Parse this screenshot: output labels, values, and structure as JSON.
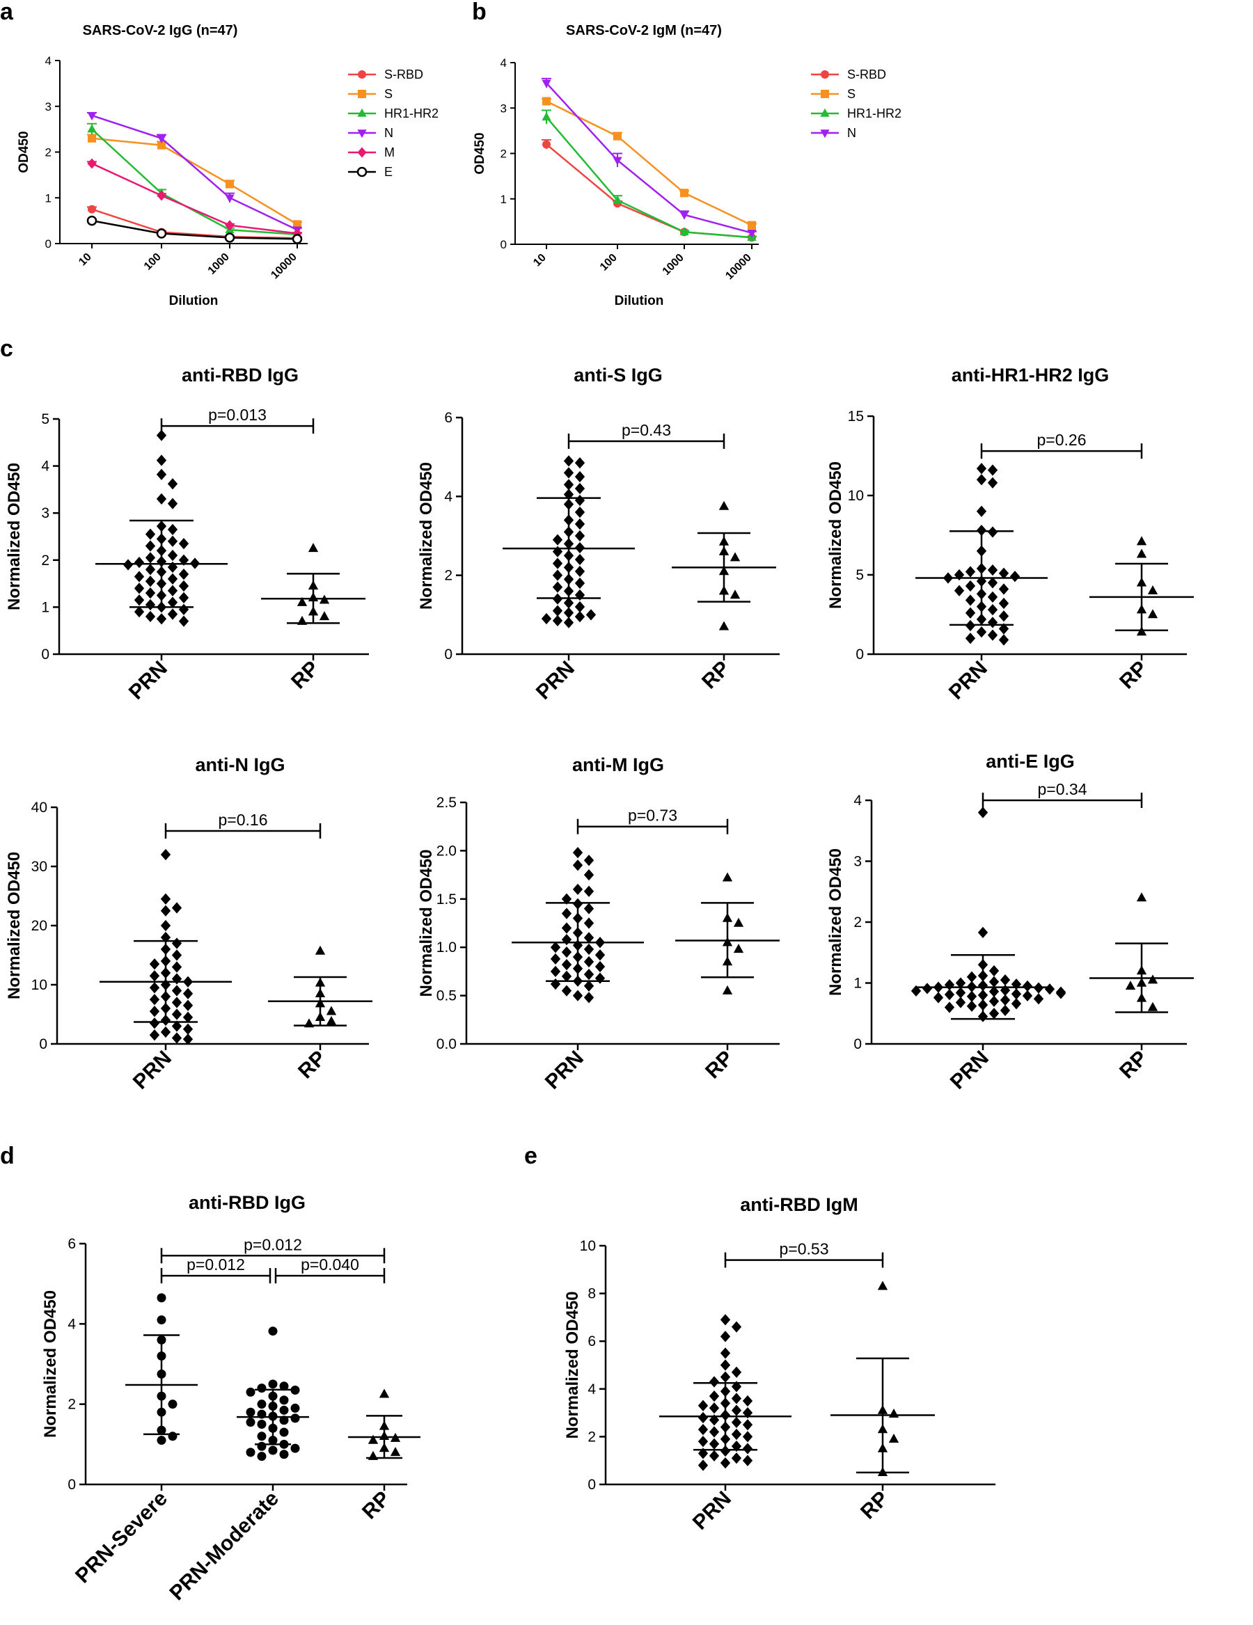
{
  "chart_data": [
    {
      "id": "a",
      "letter": "a",
      "type": "line",
      "title": "SARS-CoV-2 IgG (n=47)",
      "xlabel": "Dilution",
      "ylabel": "OD450",
      "categories": [
        "10",
        "100",
        "1000",
        "10000"
      ],
      "ylim": [
        0,
        4
      ],
      "yticks": [
        0,
        1,
        2,
        3,
        4
      ],
      "series": [
        {
          "name": "S-RBD",
          "color": "#ef4444",
          "marker": "circle",
          "values": [
            0.75,
            0.25,
            0.15,
            0.12
          ],
          "err": [
            0.05,
            0.03,
            0.02,
            0.02
          ]
        },
        {
          "name": "S",
          "color": "#f7901e",
          "marker": "square",
          "values": [
            2.3,
            2.15,
            1.3,
            0.42
          ],
          "err": [
            0.08,
            0.08,
            0.08,
            0.05
          ]
        },
        {
          "name": "HR1-HR2",
          "color": "#22bb33",
          "marker": "triangle",
          "values": [
            2.5,
            1.1,
            0.3,
            0.2
          ],
          "err": [
            0.12,
            0.08,
            0.04,
            0.03
          ]
        },
        {
          "name": "N",
          "color": "#a020f0",
          "marker": "triangle-down",
          "values": [
            2.8,
            2.3,
            1.0,
            0.3
          ],
          "err": [
            0.06,
            0.08,
            0.1,
            0.04
          ]
        },
        {
          "name": "M",
          "color": "#e8196e",
          "marker": "diamond",
          "values": [
            1.75,
            1.05,
            0.4,
            0.22
          ],
          "err": [
            0.04,
            0.04,
            0.03,
            0.02
          ]
        },
        {
          "name": "E",
          "color": "#000000",
          "marker": "open-circle",
          "values": [
            0.5,
            0.22,
            0.13,
            0.1
          ],
          "err": [
            0.03,
            0.02,
            0.02,
            0.02
          ]
        }
      ]
    },
    {
      "id": "b",
      "letter": "b",
      "type": "line",
      "title": "SARS-CoV-2 IgM (n=47)",
      "xlabel": "Dilution",
      "ylabel": "OD450",
      "categories": [
        "10",
        "100",
        "1000",
        "10000"
      ],
      "ylim": [
        0,
        4
      ],
      "yticks": [
        0,
        1,
        2,
        3,
        4
      ],
      "series": [
        {
          "name": "S-RBD",
          "color": "#ef4444",
          "marker": "circle",
          "values": [
            2.2,
            0.9,
            0.27,
            0.15
          ],
          "err": [
            0.1,
            0.05,
            0.03,
            0.02
          ]
        },
        {
          "name": "S",
          "color": "#f7901e",
          "marker": "square",
          "values": [
            3.15,
            2.38,
            1.13,
            0.42
          ],
          "err": [
            0.05,
            0.08,
            0.05,
            0.03
          ]
        },
        {
          "name": "HR1-HR2",
          "color": "#22bb33",
          "marker": "triangle",
          "values": [
            2.8,
            0.97,
            0.27,
            0.15
          ],
          "err": [
            0.15,
            0.1,
            0.03,
            0.02
          ]
        },
        {
          "name": "N",
          "color": "#a020f0",
          "marker": "triangle-down",
          "values": [
            3.55,
            1.85,
            0.65,
            0.25
          ],
          "err": [
            0.1,
            0.15,
            0.08,
            0.03
          ]
        }
      ]
    },
    {
      "id": "c1",
      "letter": "c",
      "type": "scatter",
      "title": "anti-RBD IgG",
      "ylabel": "Normalized OD450",
      "categories": [
        "PRN",
        "RP"
      ],
      "ylim": [
        0,
        5
      ],
      "yticks": [
        "0",
        "1",
        "2",
        "3",
        "4",
        "5"
      ],
      "groups": [
        {
          "name": "PRN",
          "marker": "diamond",
          "mean": 1.92,
          "sd_low": 1.0,
          "sd_high": 2.84,
          "values": [
            4.65,
            4.12,
            3.82,
            3.62,
            3.3,
            3.2,
            2.72,
            2.65,
            2.55,
            2.45,
            2.4,
            2.35,
            2.3,
            2.2,
            2.1,
            2.05,
            2.0,
            1.97,
            1.95,
            1.93,
            1.9,
            1.85,
            1.8,
            1.75,
            1.7,
            1.65,
            1.6,
            1.55,
            1.5,
            1.45,
            1.4,
            1.35,
            1.3,
            1.25,
            1.2,
            1.15,
            1.1,
            1.05,
            1.0,
            0.95,
            0.9,
            0.85,
            0.8,
            0.75,
            0.7
          ]
        },
        {
          "name": "RP",
          "marker": "triangle",
          "mean": 1.18,
          "sd_low": 0.66,
          "sd_high": 1.71,
          "values": [
            2.25,
            1.45,
            1.2,
            1.15,
            1.1,
            0.9,
            0.8,
            0.7
          ]
        }
      ],
      "comparisons": [
        {
          "label": "p=0.013",
          "from": 0,
          "to": 1,
          "y": 4.85
        }
      ]
    },
    {
      "id": "c2",
      "letter": "",
      "type": "scatter",
      "title": "anti-S IgG",
      "ylabel": "Normalized OD450",
      "categories": [
        "PRN",
        "RP"
      ],
      "ylim": [
        0,
        6
      ],
      "yticks": [
        "0",
        "2",
        "4",
        "6"
      ],
      "groups": [
        {
          "name": "PRN",
          "marker": "diamond",
          "mean": 2.68,
          "sd_low": 1.42,
          "sd_high": 3.96,
          "values": [
            4.9,
            4.85,
            4.6,
            4.5,
            4.3,
            4.2,
            4.05,
            3.9,
            3.8,
            3.6,
            3.4,
            3.3,
            3.1,
            3.0,
            2.9,
            2.8,
            2.7,
            2.6,
            2.5,
            2.4,
            2.3,
            2.2,
            2.1,
            2.0,
            1.9,
            1.8,
            1.7,
            1.6,
            1.5,
            1.4,
            1.3,
            1.2,
            1.1,
            1.05,
            1.0,
            0.95,
            0.9,
            0.85,
            0.8
          ]
        },
        {
          "name": "RP",
          "marker": "triangle",
          "mean": 2.2,
          "sd_low": 1.33,
          "sd_high": 3.07,
          "values": [
            3.75,
            2.85,
            2.6,
            2.45,
            2.1,
            1.6,
            1.5,
            0.7
          ]
        }
      ],
      "comparisons": [
        {
          "label": "p=0.43",
          "from": 0,
          "to": 1,
          "y": 5.4
        }
      ]
    },
    {
      "id": "c3",
      "letter": "",
      "type": "scatter",
      "title": "anti-HR1-HR2 IgG",
      "ylabel": "Normalized OD450",
      "categories": [
        "PRN",
        "RP"
      ],
      "ylim": [
        0,
        15
      ],
      "yticks": [
        "0",
        "5",
        "10",
        "15"
      ],
      "groups": [
        {
          "name": "PRN",
          "marker": "diamond",
          "mean": 4.8,
          "sd_low": 1.85,
          "sd_high": 7.75,
          "values": [
            11.7,
            11.6,
            11.0,
            10.8,
            9.0,
            7.8,
            7.7,
            6.5,
            5.4,
            5.3,
            5.2,
            5.1,
            5.0,
            4.9,
            4.8,
            4.6,
            4.5,
            4.3,
            4.1,
            4.0,
            3.8,
            3.6,
            3.4,
            3.2,
            3.0,
            2.8,
            2.6,
            2.4,
            2.2,
            2.0,
            1.8,
            1.6,
            1.4,
            1.2,
            1.0,
            0.9
          ]
        },
        {
          "name": "RP",
          "marker": "triangle",
          "mean": 3.6,
          "sd_low": 1.5,
          "sd_high": 5.7,
          "values": [
            7.1,
            6.3,
            4.5,
            4.0,
            2.8,
            2.5,
            1.4
          ]
        }
      ],
      "comparisons": [
        {
          "label": "p=0.26",
          "from": 0,
          "to": 1,
          "y": 12.8
        }
      ]
    },
    {
      "id": "c4",
      "letter": "",
      "type": "scatter",
      "title": "anti-N IgG",
      "ylabel": "Normalized OD450",
      "categories": [
        "PRN",
        "RP"
      ],
      "ylim": [
        0,
        40
      ],
      "yticks": [
        "0",
        "10",
        "20",
        "30",
        "40"
      ],
      "groups": [
        {
          "name": "PRN",
          "marker": "diamond",
          "mean": 10.5,
          "sd_low": 3.7,
          "sd_high": 17.4,
          "values": [
            32,
            24.5,
            23,
            22.5,
            20,
            18,
            17,
            16,
            15,
            14,
            13.5,
            13,
            12,
            11.5,
            11,
            10.5,
            10,
            9.5,
            9,
            8.5,
            8,
            7.5,
            7,
            6.5,
            6,
            5.5,
            5,
            4.5,
            4,
            3.5,
            3,
            2.5,
            2,
            1.5,
            1,
            0.8
          ]
        },
        {
          "name": "RP",
          "marker": "triangle",
          "mean": 7.2,
          "sd_low": 3.1,
          "sd_high": 11.3,
          "values": [
            15.7,
            10.3,
            8.5,
            6.8,
            5.5,
            4.5,
            3.8,
            3.4
          ]
        }
      ],
      "comparisons": [
        {
          "label": "p=0.16",
          "from": 0,
          "to": 1,
          "y": 36
        }
      ]
    },
    {
      "id": "c5",
      "letter": "",
      "type": "scatter",
      "title": "anti-M IgG",
      "ylabel": "Normalized OD450",
      "categories": [
        "PRN",
        "RP"
      ],
      "ylim": [
        0,
        2.5
      ],
      "yticks": [
        "0.0",
        "0.5",
        "1.0",
        "1.5",
        "2.0",
        "2.5"
      ],
      "groups": [
        {
          "name": "PRN",
          "marker": "diamond",
          "mean": 1.05,
          "sd_low": 0.65,
          "sd_high": 1.46,
          "values": [
            1.98,
            1.9,
            1.85,
            1.75,
            1.6,
            1.58,
            1.5,
            1.45,
            1.4,
            1.35,
            1.3,
            1.25,
            1.2,
            1.15,
            1.1,
            1.08,
            1.05,
            1.02,
            1.0,
            0.98,
            0.95,
            0.92,
            0.9,
            0.88,
            0.85,
            0.82,
            0.8,
            0.78,
            0.75,
            0.72,
            0.7,
            0.68,
            0.65,
            0.62,
            0.6,
            0.55,
            0.5,
            0.48
          ]
        },
        {
          "name": "RP",
          "marker": "triangle",
          "mean": 1.07,
          "sd_low": 0.69,
          "sd_high": 1.46,
          "values": [
            1.72,
            1.3,
            1.25,
            1.05,
            0.98,
            0.85,
            0.55
          ]
        }
      ],
      "comparisons": [
        {
          "label": "p=0.73",
          "from": 0,
          "to": 1,
          "y": 2.25
        }
      ]
    },
    {
      "id": "c6",
      "letter": "",
      "type": "scatter",
      "title": "anti-E IgG",
      "ylabel": "Normalized OD450",
      "categories": [
        "PRN",
        "RP"
      ],
      "ylim": [
        0,
        4
      ],
      "yticks": [
        "0",
        "1",
        "2",
        "3",
        "4"
      ],
      "groups": [
        {
          "name": "PRN",
          "marker": "diamond",
          "mean": 0.93,
          "sd_low": 0.41,
          "sd_high": 1.46,
          "values": [
            3.8,
            1.83,
            1.3,
            1.2,
            1.12,
            1.1,
            1.05,
            1.02,
            1.0,
            0.98,
            0.97,
            0.96,
            0.95,
            0.94,
            0.93,
            0.92,
            0.91,
            0.9,
            0.88,
            0.87,
            0.86,
            0.85,
            0.84,
            0.83,
            0.82,
            0.81,
            0.8,
            0.79,
            0.78,
            0.76,
            0.74,
            0.72,
            0.7,
            0.68,
            0.66,
            0.64,
            0.62,
            0.6,
            0.55,
            0.5,
            0.45
          ]
        },
        {
          "name": "RP",
          "marker": "triangle",
          "mean": 1.08,
          "sd_low": 0.52,
          "sd_high": 1.65,
          "values": [
            2.4,
            1.2,
            1.05,
            1.0,
            0.95,
            0.75,
            0.6
          ]
        }
      ],
      "comparisons": [
        {
          "label": "p=0.34",
          "from": 0,
          "to": 1,
          "y": 4.0
        }
      ]
    },
    {
      "id": "d",
      "letter": "d",
      "type": "scatter",
      "title": "anti-RBD IgG",
      "ylabel": "Normalized OD450",
      "categories": [
        "PRN-Severe",
        "PRN-Moderate",
        "RP"
      ],
      "ylim": [
        0,
        6
      ],
      "yticks": [
        "0",
        "2",
        "4",
        "6"
      ],
      "groups": [
        {
          "name": "PRN-Severe",
          "marker": "circle",
          "mean": 2.48,
          "sd_low": 1.25,
          "sd_high": 3.72,
          "values": [
            4.65,
            4.1,
            3.6,
            3.2,
            2.75,
            2.2,
            2.0,
            1.8,
            1.35,
            1.2,
            1.1
          ]
        },
        {
          "name": "PRN-Moderate",
          "marker": "circle",
          "mean": 1.68,
          "sd_low": 1.0,
          "sd_high": 2.36,
          "values": [
            3.82,
            2.5,
            2.45,
            2.4,
            2.35,
            2.3,
            2.2,
            2.1,
            2.0,
            1.95,
            1.9,
            1.85,
            1.8,
            1.75,
            1.7,
            1.65,
            1.6,
            1.55,
            1.5,
            1.4,
            1.3,
            1.2,
            1.1,
            1.0,
            0.95,
            0.9,
            0.85,
            0.8,
            0.75,
            0.7
          ]
        },
        {
          "name": "RP",
          "marker": "triangle",
          "mean": 1.18,
          "sd_low": 0.66,
          "sd_high": 1.71,
          "values": [
            2.25,
            1.45,
            1.2,
            1.15,
            1.1,
            0.9,
            0.8,
            0.7
          ]
        }
      ],
      "comparisons": [
        {
          "label": "p=0.012",
          "from": 0,
          "to": 2,
          "y": 5.7
        },
        {
          "label": "p=0.012",
          "from": 0,
          "to": 1,
          "y": 5.2
        },
        {
          "label": "p=0.040",
          "from": 1,
          "to": 2,
          "y": 5.2
        }
      ]
    },
    {
      "id": "e",
      "letter": "e",
      "type": "scatter",
      "title": "anti-RBD IgM",
      "ylabel": "Normalized OD450",
      "categories": [
        "PRN",
        "RP"
      ],
      "ylim": [
        0,
        10
      ],
      "yticks": [
        "0",
        "2",
        "4",
        "6",
        "8",
        "10"
      ],
      "groups": [
        {
          "name": "PRN",
          "marker": "diamond",
          "mean": 2.85,
          "sd_low": 1.45,
          "sd_high": 4.25,
          "values": [
            6.9,
            6.6,
            6.2,
            5.5,
            5.0,
            4.7,
            4.5,
            4.3,
            4.1,
            3.9,
            3.7,
            3.6,
            3.5,
            3.4,
            3.3,
            3.2,
            3.1,
            3.0,
            2.9,
            2.8,
            2.7,
            2.6,
            2.5,
            2.4,
            2.3,
            2.2,
            2.1,
            2.0,
            1.9,
            1.8,
            1.7,
            1.6,
            1.5,
            1.4,
            1.3,
            1.2,
            1.1,
            1.0,
            0.9,
            0.8
          ]
        },
        {
          "name": "RP",
          "marker": "triangle",
          "mean": 2.9,
          "sd_low": 0.5,
          "sd_high": 5.28,
          "values": [
            8.3,
            3.1,
            2.95,
            2.3,
            1.9,
            1.5,
            0.5
          ]
        }
      ],
      "comparisons": [
        {
          "label": "p=0.53",
          "from": 0,
          "to": 1,
          "y": 9.4
        }
      ]
    }
  ]
}
